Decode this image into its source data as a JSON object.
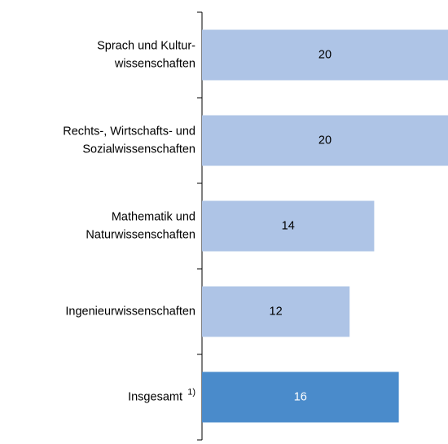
{
  "chart_data": {
    "type": "bar",
    "orientation": "horizontal",
    "categories": [
      "Sprach und Kultur-\nwissenschaften",
      "Rechts-, Wirtschafts- und\nSozialwissenschaften",
      "Mathematik und\nNaturwissenschaften",
      "Ingenieurwissenschaften",
      "Insgesamt"
    ],
    "category_notes": [
      null,
      null,
      null,
      null,
      "1)"
    ],
    "values": [
      20,
      20,
      14,
      12,
      16
    ],
    "colors": [
      "#aec4e6",
      "#aec4e6",
      "#aec4e6",
      "#aec4e6",
      "#4a8bcb"
    ],
    "label_colors": [
      "#000000",
      "#000000",
      "#000000",
      "#000000",
      "#ffffff"
    ]
  }
}
